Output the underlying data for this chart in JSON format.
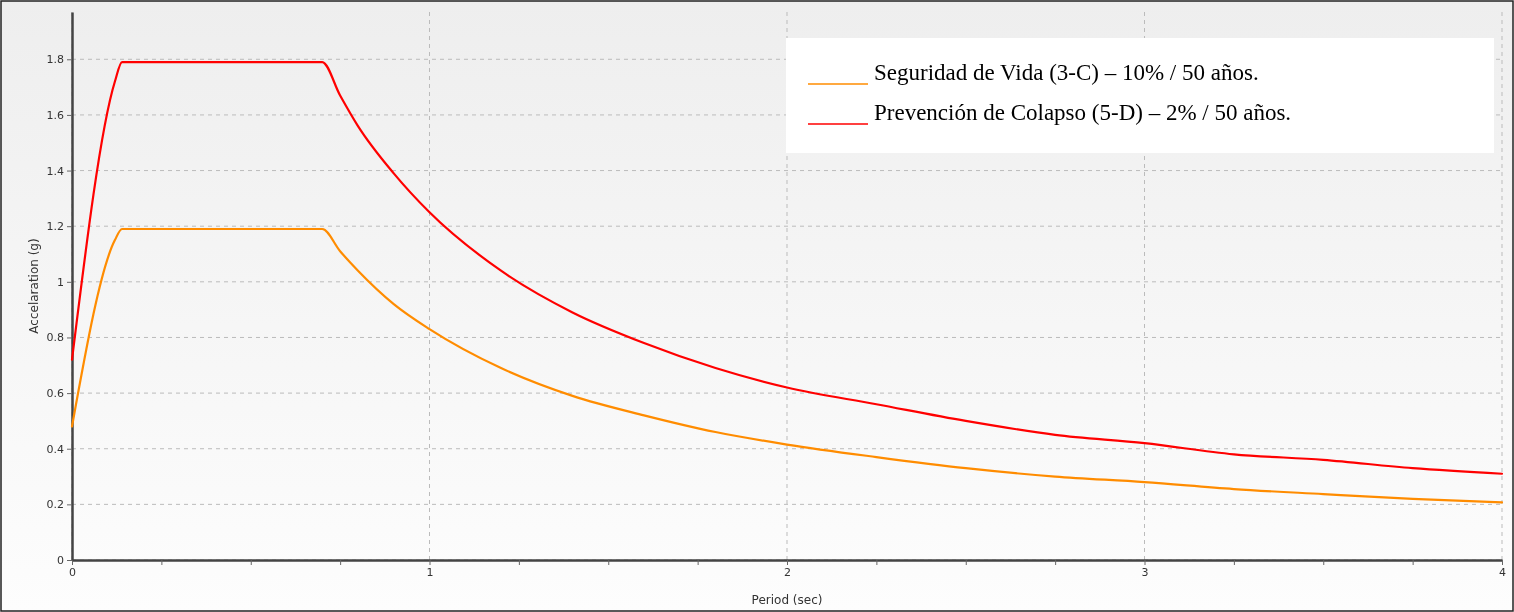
{
  "chart_data": {
    "type": "line",
    "xlabel": "Period (sec)",
    "ylabel": "Accelaration (g)",
    "xlim": [
      0,
      4
    ],
    "ylim": [
      0,
      1.97
    ],
    "xticks": [
      0,
      {
        "value": 0.25,
        "label": null
      },
      {
        "value": 0.5,
        "label": null
      },
      {
        "value": 0.75,
        "label": null
      },
      1,
      {
        "value": 1.25,
        "label": null
      },
      {
        "value": 1.5,
        "label": null
      },
      {
        "value": 1.75,
        "label": null
      },
      2,
      {
        "value": 2.25,
        "label": null
      },
      {
        "value": 2.5,
        "label": null
      },
      {
        "value": 2.75,
        "label": null
      },
      3,
      {
        "value": 3.25,
        "label": null
      },
      {
        "value": 3.5,
        "label": null
      },
      {
        "value": 3.75,
        "label": null
      },
      4
    ],
    "yticks": [
      0,
      0.2,
      0.4,
      0.6,
      0.8,
      1,
      1.2,
      1.4,
      1.6,
      1.8
    ],
    "grid": true,
    "legend": "top right",
    "marker": "none",
    "line_style": "solid",
    "series": [
      {
        "name": "Seguridad de Vida (3-C) – 10% / 50 años.",
        "color": "#ff8c00",
        "x": [
          0,
          0.12,
          0.14,
          0.7,
          0.75,
          0.8,
          0.9,
          1,
          1.2,
          1.4,
          1.6,
          1.8,
          2,
          2.25,
          2.5,
          2.75,
          3,
          3.25,
          3.5,
          3.75,
          4
        ],
        "values": [
          0.48,
          1.15,
          1.19,
          1.19,
          1.11,
          1.04,
          0.92,
          0.83,
          0.69,
          0.59,
          0.52,
          0.46,
          0.415,
          0.37,
          0.33,
          0.3,
          0.28,
          0.255,
          0.237,
          0.22,
          0.207
        ]
      },
      {
        "name": "Prevención de Colapso (5-D) – 2% / 50 años.",
        "color": "#ff0000",
        "x": [
          0,
          0.12,
          0.14,
          0.7,
          0.75,
          0.8,
          0.9,
          1,
          1.2,
          1.4,
          1.6,
          1.8,
          2,
          2.25,
          2.5,
          2.75,
          3,
          3.25,
          3.5,
          3.75,
          4
        ],
        "values": [
          0.72,
          1.72,
          1.79,
          1.79,
          1.67,
          1.56,
          1.39,
          1.25,
          1.04,
          0.89,
          0.78,
          0.69,
          0.62,
          0.56,
          0.5,
          0.45,
          0.42,
          0.38,
          0.36,
          0.33,
          0.31
        ]
      }
    ]
  }
}
